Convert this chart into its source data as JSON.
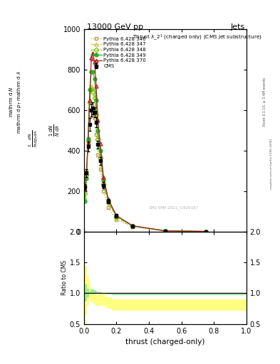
{
  "title_top": "13000 GeV pp",
  "title_right": "Jets",
  "plot_title": "Thrust $\\lambda\\_2^1$ (charged only) (CMS jet substructure)",
  "xlabel": "thrust (charged-only)",
  "right_label1": "Rivet 3.1.10, ≥ 3.4M events",
  "right_label2": "mcplots.cern.ch [arXiv:1306.3436]",
  "x_vals": [
    0.005,
    0.015,
    0.025,
    0.035,
    0.045,
    0.055,
    0.065,
    0.075,
    0.085,
    0.1,
    0.12,
    0.15,
    0.2,
    0.3,
    0.5,
    0.75
  ],
  "x_edges": [
    0.0,
    0.01,
    0.02,
    0.03,
    0.04,
    0.05,
    0.06,
    0.07,
    0.08,
    0.09,
    0.11,
    0.13,
    0.17,
    0.25,
    0.4,
    0.6,
    1.0
  ],
  "cms_y": [
    220,
    290,
    420,
    530,
    600,
    610,
    590,
    540,
    430,
    350,
    230,
    150,
    80,
    30,
    5,
    2
  ],
  "cms_yerr": [
    15,
    20,
    25,
    30,
    30,
    30,
    25,
    25,
    20,
    20,
    15,
    10,
    8,
    5,
    2,
    1
  ],
  "py346_y": [
    230,
    300,
    450,
    600,
    600,
    580,
    560,
    480,
    380,
    310,
    200,
    120,
    60,
    25,
    4,
    1.5
  ],
  "py347_y": [
    170,
    270,
    450,
    650,
    720,
    710,
    680,
    600,
    470,
    380,
    245,
    150,
    75,
    28,
    5,
    1.8
  ],
  "py348_y": [
    190,
    280,
    450,
    640,
    700,
    690,
    660,
    580,
    455,
    365,
    235,
    145,
    72,
    27,
    4.5,
    1.6
  ],
  "py349_y": [
    150,
    265,
    460,
    700,
    790,
    790,
    755,
    650,
    500,
    400,
    255,
    155,
    78,
    29,
    5,
    1.8
  ],
  "py370_y": [
    215,
    290,
    440,
    650,
    860,
    880,
    840,
    720,
    550,
    435,
    270,
    160,
    80,
    30,
    5,
    2
  ],
  "color_346": "#c8a050",
  "color_347": "#c8c840",
  "color_348": "#90c820",
  "color_349": "#20b820",
  "color_370": "#b02020",
  "color_cms": "#000000",
  "ratio_346_lo": [
    0.5,
    0.65,
    0.8,
    0.9,
    0.87,
    0.84,
    0.82,
    0.8,
    0.78,
    0.8,
    0.8,
    0.75,
    0.72,
    0.72,
    0.72,
    0.72
  ],
  "ratio_346_hi": [
    1.45,
    1.45,
    1.3,
    1.2,
    1.08,
    1.02,
    1.0,
    0.97,
    0.96,
    1.0,
    1.0,
    0.94,
    0.9,
    0.9,
    0.9,
    0.9
  ],
  "ratio_349_lo": [
    0.85,
    0.88,
    0.94,
    0.99,
    1.01,
    1.01,
    1.0,
    1.0,
    0.99,
    0.99,
    0.99,
    0.98,
    0.97,
    0.97,
    0.97,
    0.97
  ],
  "ratio_349_hi": [
    1.15,
    1.15,
    1.08,
    1.03,
    1.06,
    1.06,
    1.05,
    1.04,
    1.02,
    1.02,
    1.01,
    1.01,
    1.0,
    1.0,
    1.0,
    1.0
  ],
  "ylim_main": [
    0,
    1000
  ],
  "ylim_ratio": [
    0.5,
    2.0
  ],
  "xlim": [
    0.0,
    1.0
  ],
  "yticks_main": [
    0,
    200,
    400,
    600,
    800,
    1000
  ],
  "yticks_ratio": [
    0.5,
    1.0,
    1.5,
    2.0
  ]
}
